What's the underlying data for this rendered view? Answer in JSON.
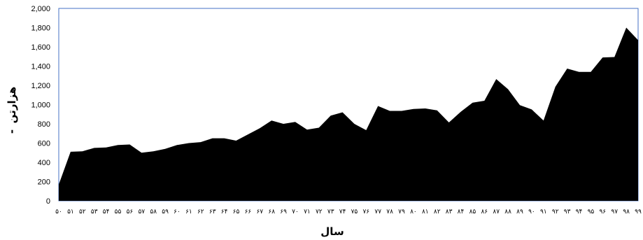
{
  "chart_data": {
    "type": "area",
    "xlabel": "سال",
    "ylabel": "هزارتن",
    "ylabel_suffix": "-",
    "ylim": [
      0,
      2000
    ],
    "y_ticks": [
      "0",
      "200",
      "400",
      "600",
      "800",
      "1,000",
      "1,200",
      "1,400",
      "1,600",
      "1,800",
      "2,000"
    ],
    "grid": false,
    "legend": "none",
    "fill_color": "#000000",
    "frame_color": "#4472c4",
    "x": [
      "۵۰",
      "۵۱",
      "۵۲",
      "۵۳",
      "۵۴",
      "۵۵",
      "۵۶",
      "۵۷",
      "۵۸",
      "۵۹",
      "۶۰",
      "۶۱",
      "۶۲",
      "۶۳",
      "۶۴",
      "۶۵",
      "۶۶",
      "۶۷",
      "۶۸",
      "۶۹",
      "۷۰",
      "۷۱",
      "۷۲",
      "۷۳",
      "۷۴",
      "۷۵",
      "۷۶",
      "۷۷",
      "۷۸",
      "۷۹",
      "۸۰",
      "۸۱",
      "۸۲",
      "۸۳",
      "۸۴",
      "۸۵",
      "۸۶",
      "۸۷",
      "۸۸",
      "۸۹",
      "۹۰",
      "۹۱",
      "۹۲",
      "۹۳",
      "۹۴",
      "۹۵",
      "۹۶",
      "۹۷",
      "۹۸",
      "۹۹"
    ],
    "values": [
      170,
      510,
      515,
      550,
      555,
      580,
      585,
      500,
      515,
      540,
      580,
      600,
      610,
      650,
      650,
      625,
      690,
      755,
      835,
      800,
      820,
      740,
      760,
      885,
      920,
      800,
      735,
      985,
      935,
      935,
      955,
      960,
      940,
      815,
      925,
      1020,
      1040,
      1265,
      1160,
      995,
      950,
      835,
      1185,
      1375,
      1340,
      1340,
      1490,
      1495,
      1800,
      1670
    ]
  }
}
